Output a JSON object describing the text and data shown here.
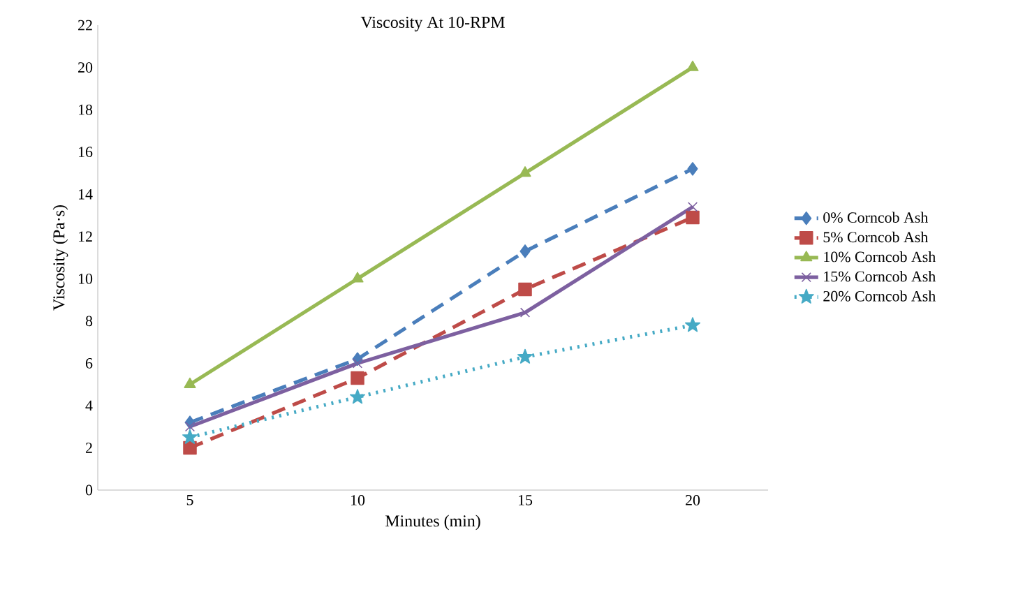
{
  "chart_data": {
    "type": "line",
    "title": "Viscosity At 10-RPM",
    "xlabel": "Minutes (min)",
    "ylabel": "Viscosity  (Pa·s)",
    "categories": [
      "5",
      "10",
      "15",
      "20"
    ],
    "ylim": [
      0,
      22
    ],
    "yticks": [
      0,
      2,
      4,
      6,
      8,
      10,
      12,
      14,
      16,
      18,
      20,
      22
    ],
    "grid": false,
    "legend": "right",
    "series": [
      {
        "name": "0% Corncob Ash",
        "color": "#4a7ebb",
        "values": [
          3.2,
          6.2,
          11.3,
          15.2
        ],
        "marker": "diamond",
        "line_style": "dashed"
      },
      {
        "name": "5% Corncob Ash",
        "color": "#be4b48",
        "values": [
          2.0,
          5.3,
          9.5,
          12.9
        ],
        "marker": "square",
        "line_style": "dashed"
      },
      {
        "name": "10% Corncob Ash",
        "color": "#98b954",
        "values": [
          5.0,
          10.0,
          15.0,
          20.0
        ],
        "marker": "triangle",
        "line_style": "solid"
      },
      {
        "name": "15% Corncob Ash",
        "color": "#7d60a0",
        "values": [
          3.0,
          6.0,
          8.4,
          13.4
        ],
        "marker": "cross",
        "line_style": "solid"
      },
      {
        "name": "20% Corncob Ash",
        "color": "#46aac5",
        "values": [
          2.5,
          4.4,
          6.3,
          7.8
        ],
        "marker": "star",
        "line_style": "dotted"
      }
    ]
  }
}
